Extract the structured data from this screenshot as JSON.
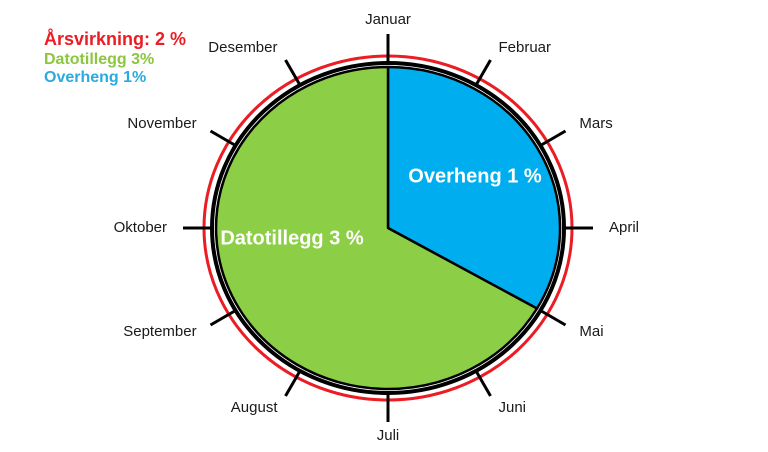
{
  "legend": {
    "items": [
      {
        "label": "Årsvirkning: 2 %",
        "color": "#EC1C24"
      },
      {
        "label": "Datotillegg 3%",
        "color": "#8CC63F"
      },
      {
        "label": "Overheng 1%",
        "color": "#29ABE2"
      }
    ]
  },
  "chart_data": {
    "type": "pie",
    "title": "",
    "categories": [
      "Januar",
      "Februar",
      "Mars",
      "April",
      "Mai",
      "Juni",
      "Juli",
      "August",
      "September",
      "Oktober",
      "November",
      "Desember"
    ],
    "slices": [
      {
        "name": "overheng",
        "label": "Overheng 1 %",
        "value": 1,
        "months": 4,
        "color": "#00AEEF",
        "text_color": "#FFFFFF"
      },
      {
        "name": "datotillegg",
        "label": "Datotillegg 3 %",
        "value": 3,
        "months": 8,
        "color": "#8CCE46",
        "text_color": "#FFFFFF"
      }
    ],
    "rings": {
      "outline_color": "#000000",
      "outer_ring_color": "#EC1C24"
    },
    "tick_color": "#000000",
    "month_label_color": "#1A1A1A",
    "legend_position": "top-left"
  }
}
